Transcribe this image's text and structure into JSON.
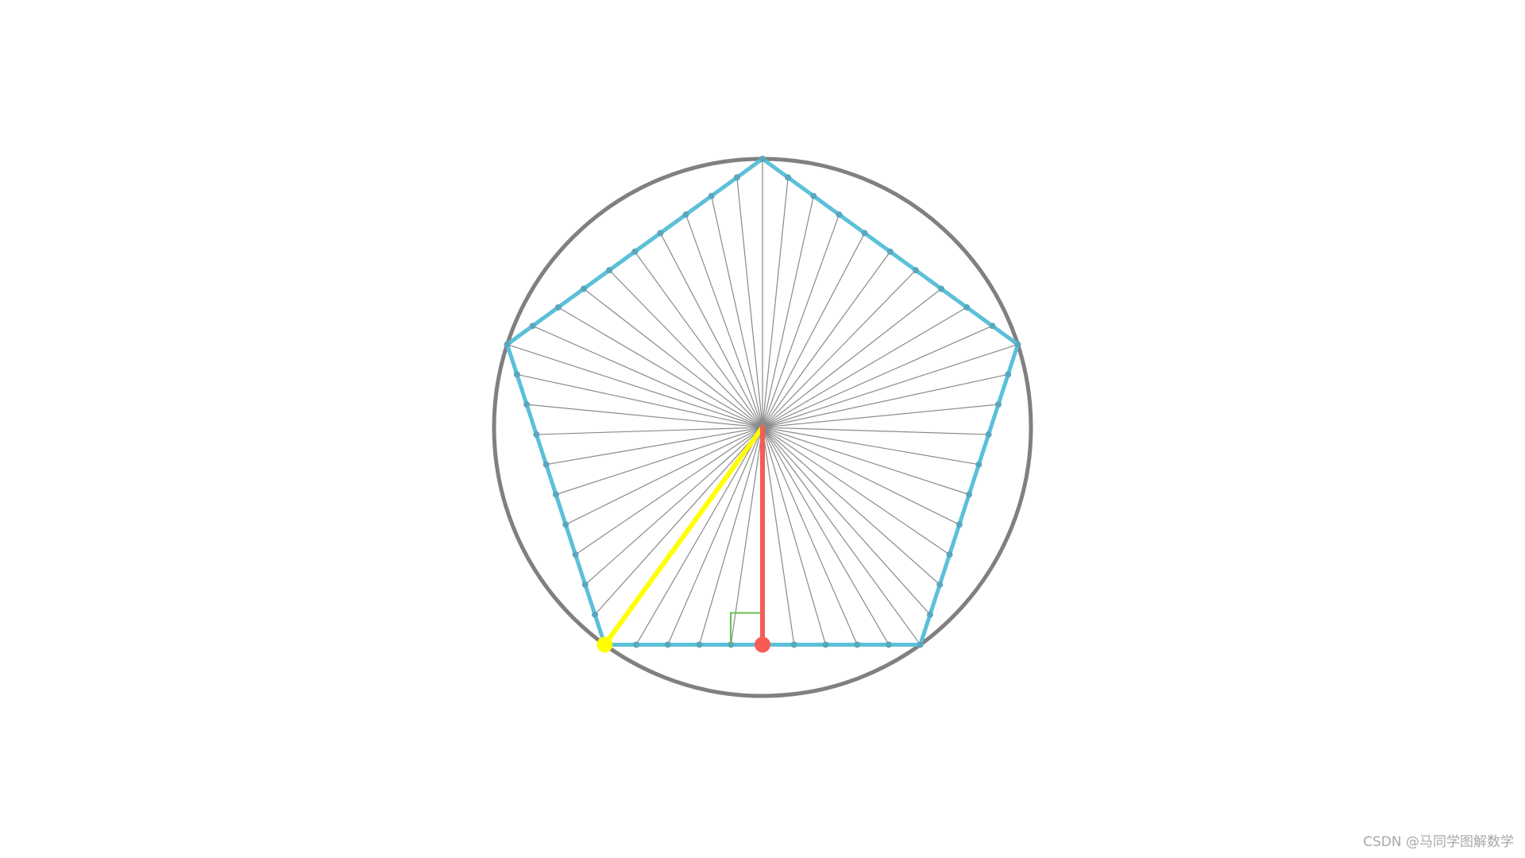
{
  "watermark": "CSDN @马同学图解数学",
  "diagram": {
    "shape": "regular pentagon inscribed in circle",
    "sides": 5,
    "points_per_side": 10,
    "colors": {
      "background": "#ffffff",
      "circle": "#808080",
      "pentagon": "#5bc0d8",
      "division_point": "#5aa7bd",
      "spoke": "#8a8a8a",
      "circumradius": "#ffff00",
      "apothem": "#f55c55",
      "right_angle_marker": "#6abf4b"
    }
  }
}
